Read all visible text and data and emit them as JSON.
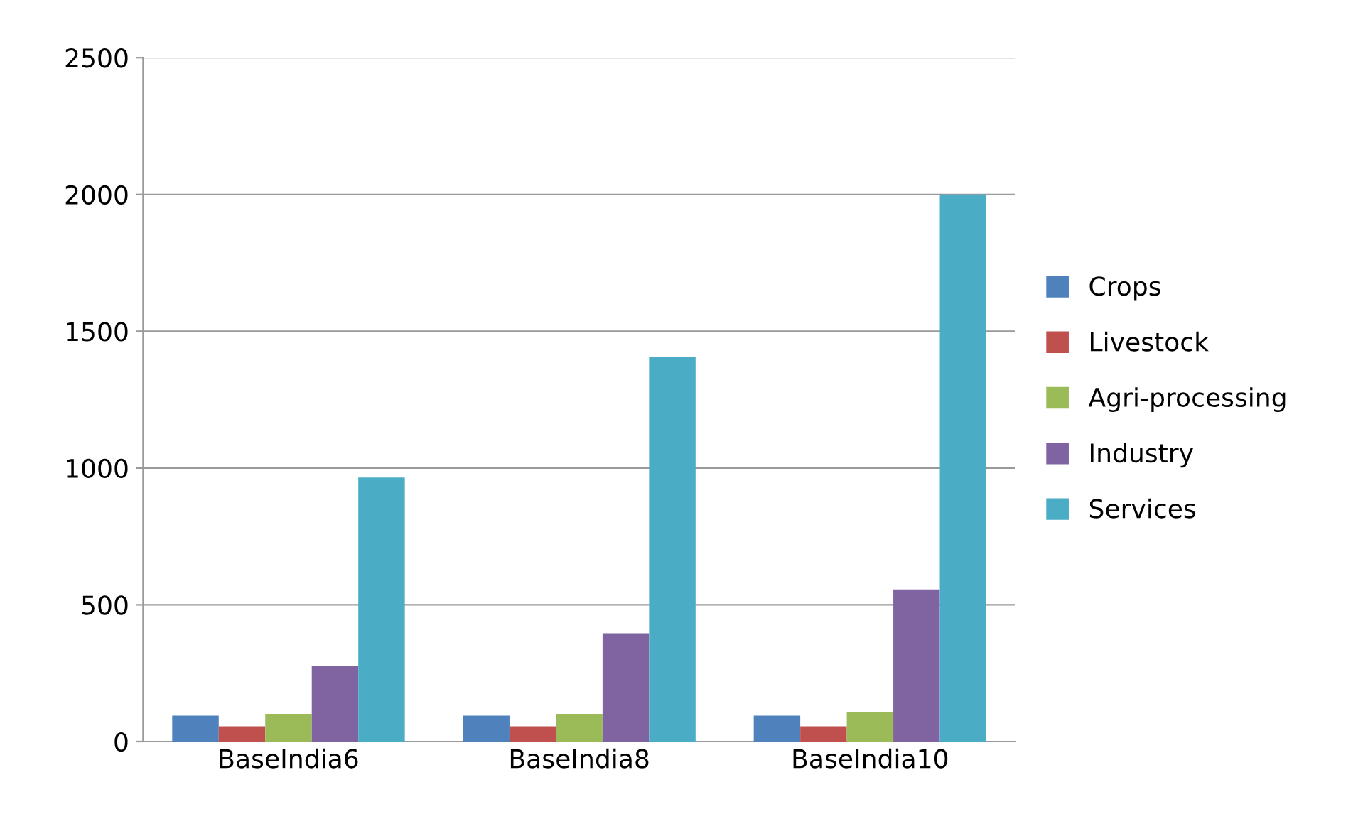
{
  "chart_data": {
    "type": "bar",
    "categories": [
      "BaseIndia6",
      "BaseIndia8",
      "BaseIndia10"
    ],
    "series": [
      {
        "name": "Crops",
        "color": "#4f81bd",
        "values": [
          95,
          95,
          95
        ]
      },
      {
        "name": "Livestock",
        "color": "#c0504d",
        "values": [
          56,
          56,
          56
        ]
      },
      {
        "name": "Agri-processing",
        "color": "#9bbb59",
        "values": [
          101,
          101,
          108
        ]
      },
      {
        "name": "Industry",
        "color": "#8064a2",
        "values": [
          275,
          396,
          556
        ]
      },
      {
        "name": "Services",
        "color": "#4bacc6",
        "values": [
          965,
          1405,
          2000
        ]
      }
    ],
    "ylim": [
      0,
      2500
    ],
    "yticks": [
      0,
      500,
      1000,
      1500,
      2000,
      2500
    ],
    "grid": "y",
    "legend": "right"
  }
}
